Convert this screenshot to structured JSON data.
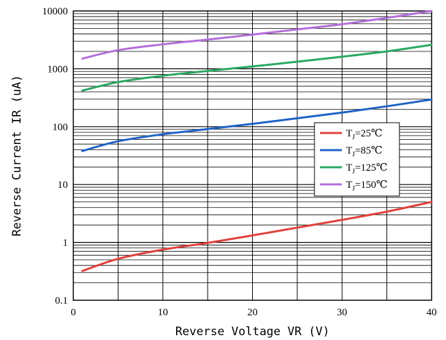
{
  "chart_data": {
    "type": "line",
    "xlabel": "Reverse Voltage VR (V)",
    "ylabel": "Reverse Current IR (uA)",
    "xlim": [
      0,
      40
    ],
    "ylim": [
      0.1,
      10000
    ],
    "yscale": "log",
    "x_ticks": [
      "0",
      "10",
      "20",
      "30",
      "40"
    ],
    "y_ticks": [
      "0.1",
      "1",
      "10",
      "100",
      "1000",
      "10000"
    ],
    "grid": true,
    "legend_position": "right-center",
    "series": [
      {
        "name_main": "T",
        "name_sub": "J",
        "name_rest": "=25℃",
        "color": "#e0413c",
        "x": [
          1,
          5,
          10,
          15,
          20,
          25,
          30,
          35,
          40
        ],
        "y": [
          0.32,
          0.52,
          0.75,
          0.98,
          1.32,
          1.8,
          2.45,
          3.4,
          5.0
        ]
      },
      {
        "name_main": "T",
        "name_sub": "J",
        "name_rest": "=85℃",
        "color": "#1f62c7",
        "x": [
          1,
          5,
          10,
          15,
          20,
          25,
          30,
          35,
          40
        ],
        "y": [
          38,
          56,
          74,
          91,
          112,
          140,
          175,
          225,
          295
        ]
      },
      {
        "name_main": "T",
        "name_sub": "J",
        "name_rest": "=125℃",
        "color": "#2aa864",
        "x": [
          1,
          5,
          10,
          15,
          20,
          25,
          30,
          35,
          40
        ],
        "y": [
          420,
          590,
          760,
          920,
          1100,
          1330,
          1620,
          2000,
          2600
        ]
      },
      {
        "name_main": "T",
        "name_sub": "J",
        "name_rest": "=150℃",
        "color": "#b46ed9",
        "x": [
          1,
          5,
          10,
          15,
          20,
          25,
          30,
          35,
          40
        ],
        "y": [
          1500,
          2100,
          2650,
          3200,
          3900,
          4800,
          5900,
          7600,
          10000
        ]
      }
    ]
  }
}
